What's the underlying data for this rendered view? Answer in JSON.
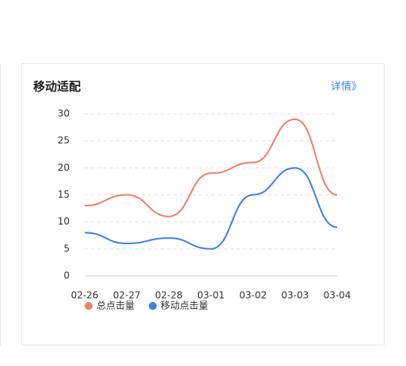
{
  "chart_data": {
    "type": "line",
    "title": "移动适配",
    "categories": [
      "02-26",
      "02-27",
      "02-28",
      "03-01",
      "03-02",
      "03-03",
      "03-04"
    ],
    "series": [
      {
        "name": "总点击量",
        "color": "#f0806a",
        "values": [
          13,
          15,
          11,
          19,
          21,
          29,
          15
        ]
      },
      {
        "name": "移动点击量",
        "color": "#3f7fe8",
        "values": [
          8,
          6,
          7,
          5,
          15,
          20,
          9
        ]
      }
    ],
    "ylim": [
      0,
      30
    ],
    "yticks": [
      0,
      5,
      10,
      15,
      20,
      25,
      30
    ],
    "grid": true,
    "smooth": true,
    "legend": "bottom-left"
  },
  "link": "详情》"
}
